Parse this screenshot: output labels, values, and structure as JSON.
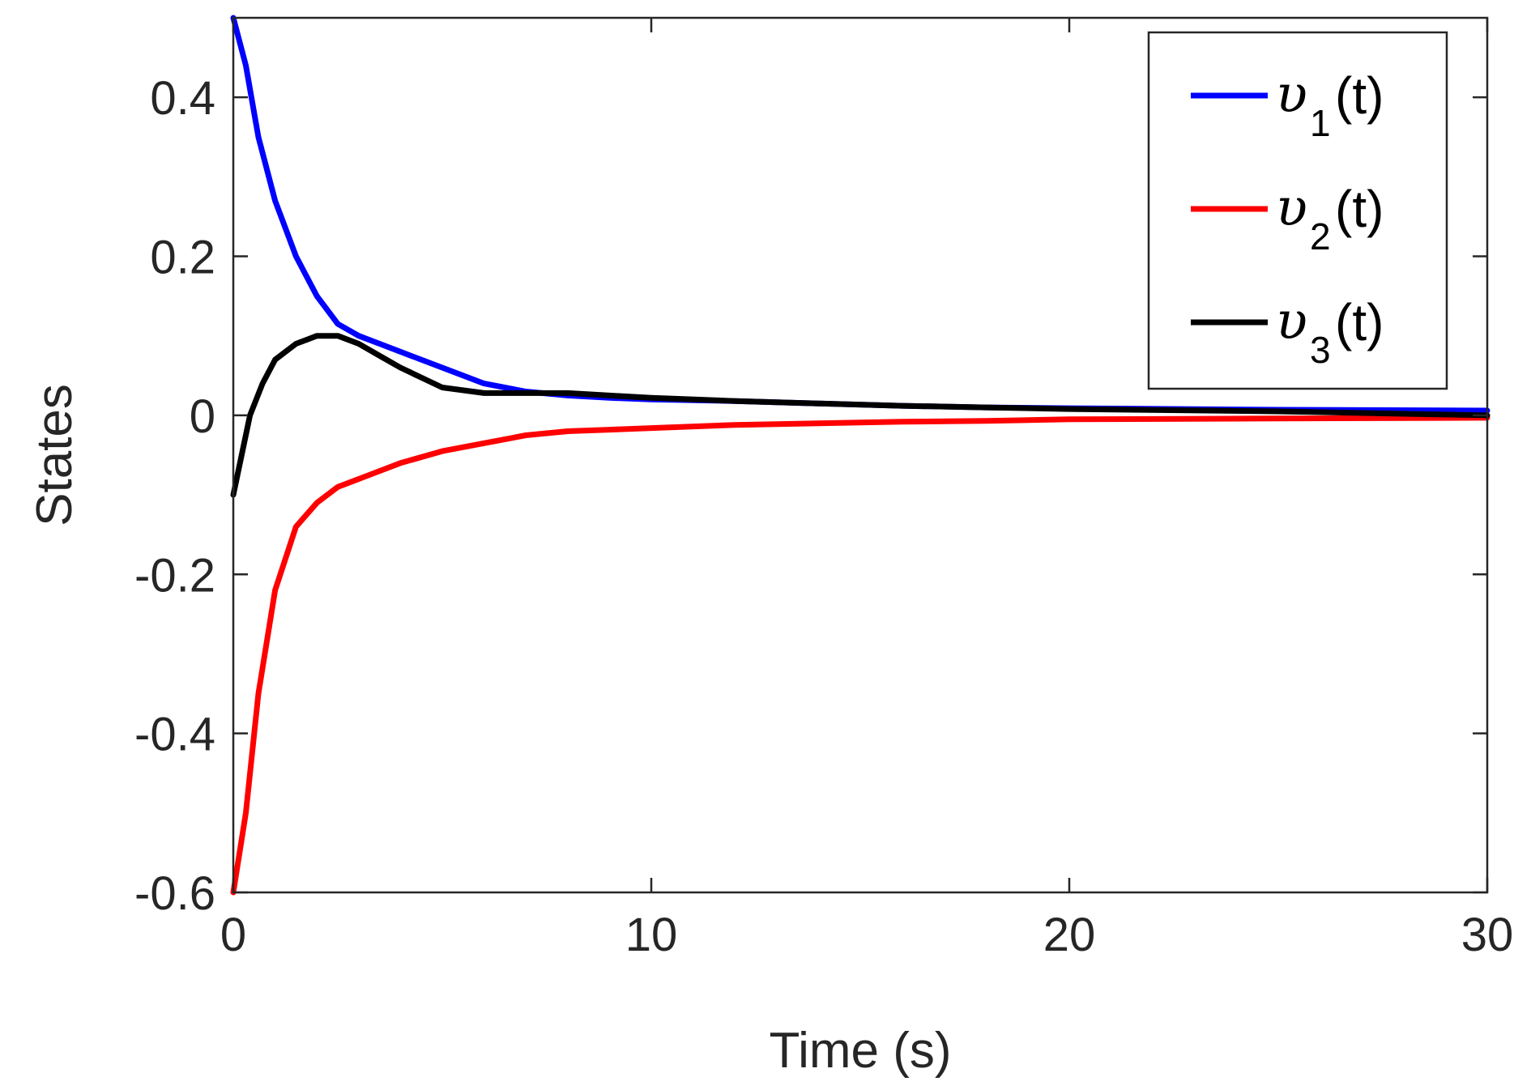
{
  "chart_data": {
    "type": "line",
    "title": "",
    "xlabel": "Time (s)",
    "ylabel": "States",
    "xlim": [
      0,
      30
    ],
    "ylim": [
      -0.6,
      0.5
    ],
    "xticks": [
      0,
      10,
      20,
      30
    ],
    "xtick_labels": [
      "0",
      "10",
      "20",
      "30"
    ],
    "yticks": [
      -0.6,
      -0.4,
      -0.2,
      0,
      0.2,
      0.4
    ],
    "ytick_labels": [
      "-0.6",
      "-0.4",
      "-0.2",
      "0",
      "0.2",
      "0.4"
    ],
    "grid": false,
    "legend_position": "top-right",
    "series": [
      {
        "name": "v1(t)",
        "symbol": "υ",
        "subscript": "1",
        "suffix": "(t)",
        "color": "#0000ff",
        "x": [
          0,
          0.3,
          0.6,
          1.0,
          1.5,
          2.0,
          2.5,
          3.0,
          3.5,
          4.0,
          5.0,
          6.0,
          7.0,
          8.0,
          9.0,
          10.0,
          12.0,
          14.0,
          16.0,
          18.0,
          20.0,
          25.0,
          30.0
        ],
        "y": [
          0.5,
          0.44,
          0.35,
          0.27,
          0.2,
          0.15,
          0.115,
          0.1,
          0.09,
          0.08,
          0.06,
          0.04,
          0.03,
          0.025,
          0.022,
          0.02,
          0.018,
          0.015,
          0.012,
          0.01,
          0.009,
          0.007,
          0.006
        ]
      },
      {
        "name": "v2(t)",
        "symbol": "υ",
        "subscript": "2",
        "suffix": "(t)",
        "color": "#ff0000",
        "x": [
          0,
          0.3,
          0.6,
          1.0,
          1.5,
          2.0,
          2.5,
          3.0,
          3.5,
          4.0,
          5.0,
          6.0,
          7.0,
          8.0,
          9.0,
          10.0,
          12.0,
          14.0,
          16.0,
          18.0,
          20.0,
          25.0,
          30.0
        ],
        "y": [
          -0.6,
          -0.5,
          -0.35,
          -0.22,
          -0.14,
          -0.11,
          -0.09,
          -0.08,
          -0.07,
          -0.06,
          -0.045,
          -0.035,
          -0.025,
          -0.02,
          -0.018,
          -0.016,
          -0.012,
          -0.01,
          -0.008,
          -0.007,
          -0.005,
          -0.004,
          -0.003
        ]
      },
      {
        "name": "v3(t)",
        "symbol": "υ",
        "subscript": "3",
        "suffix": "(t)",
        "color": "#000000",
        "x": [
          0,
          0.2,
          0.4,
          0.7,
          1.0,
          1.5,
          2.0,
          2.5,
          3.0,
          3.5,
          4.0,
          5.0,
          6.0,
          7.0,
          8.0,
          9.0,
          10.0,
          12.0,
          14.0,
          16.0,
          18.0,
          20.0,
          25.0,
          30.0
        ],
        "y": [
          -0.1,
          -0.05,
          0.0,
          0.04,
          0.07,
          0.09,
          0.1,
          0.1,
          0.09,
          0.075,
          0.06,
          0.035,
          0.028,
          0.028,
          0.028,
          0.025,
          0.022,
          0.018,
          0.015,
          0.012,
          0.01,
          0.008,
          0.005,
          0.0
        ]
      }
    ]
  }
}
